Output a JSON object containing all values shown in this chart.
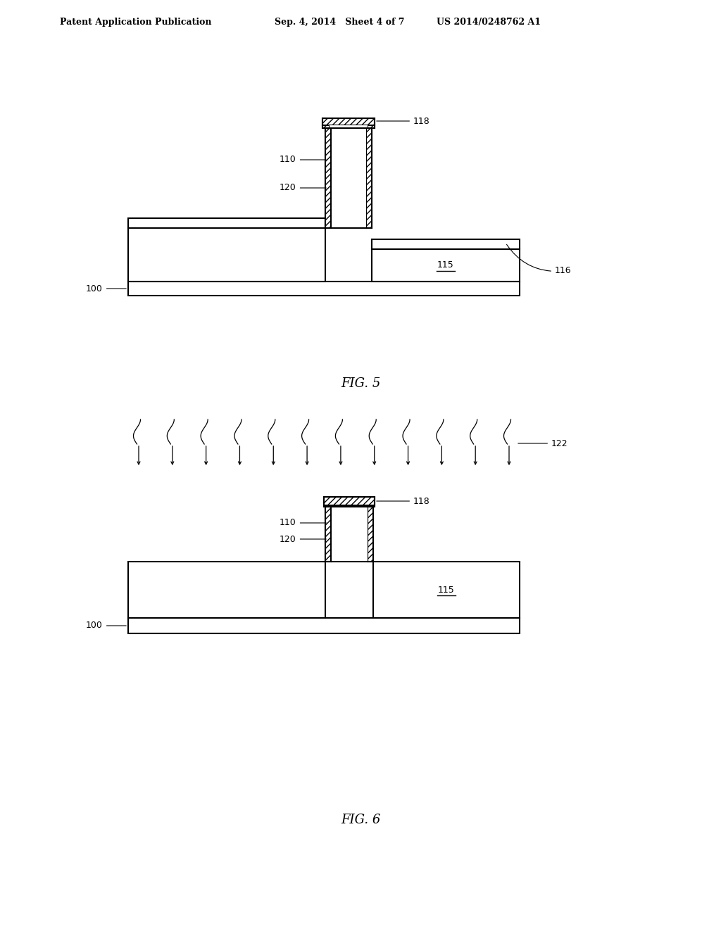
{
  "bg_color": "#ffffff",
  "header_left": "Patent Application Publication",
  "header_mid": "Sep. 4, 2014   Sheet 4 of 7",
  "header_right": "US 2014/0248762 A1",
  "fig5_label": "FIG. 5",
  "fig6_label": "FIG. 6",
  "line_color": "#000000",
  "label_fontsize": 9,
  "fig_label_fontsize": 13,
  "header_fontsize": 9
}
